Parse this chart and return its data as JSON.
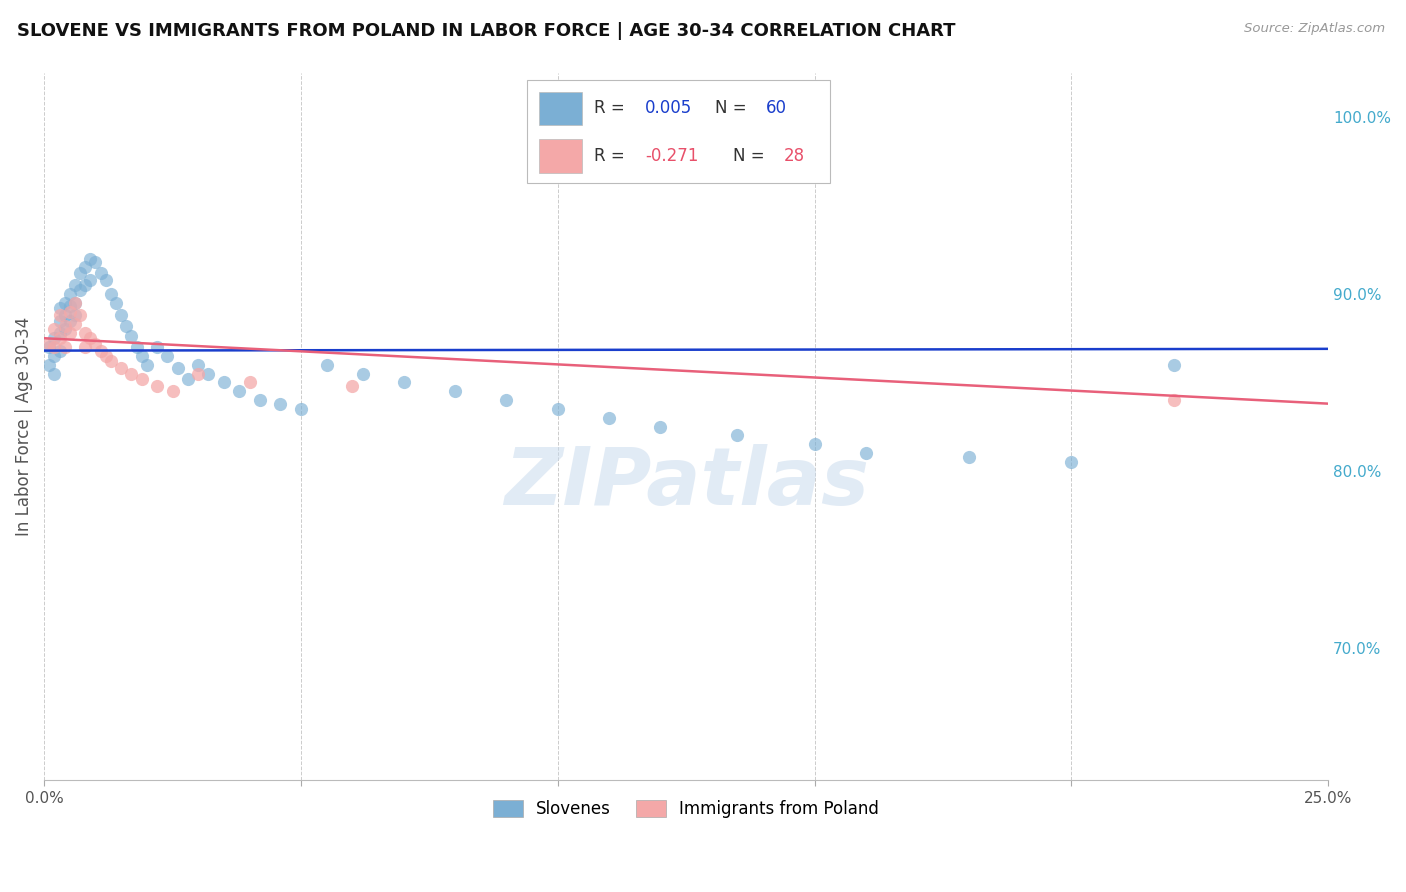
{
  "title": "SLOVENE VS IMMIGRANTS FROM POLAND IN LABOR FORCE | AGE 30-34 CORRELATION CHART",
  "source": "Source: ZipAtlas.com",
  "ylabel": "In Labor Force | Age 30-34",
  "ylabel_right_ticks": [
    "70.0%",
    "80.0%",
    "90.0%",
    "100.0%"
  ],
  "ylabel_right_vals": [
    0.7,
    0.8,
    0.9,
    1.0
  ],
  "xlim": [
    0.0,
    0.25
  ],
  "ylim": [
    0.625,
    1.025
  ],
  "blue_color": "#7BAFD4",
  "pink_color": "#F4A8A8",
  "trend_blue": "#1A3ECC",
  "trend_pink": "#E8607A",
  "watermark": "ZIPatlas",
  "watermark_color": "#C5D8EC",
  "watermark_alpha": 0.5,
  "blue_scatter_x": [
    0.001,
    0.001,
    0.002,
    0.002,
    0.002,
    0.003,
    0.003,
    0.003,
    0.003,
    0.004,
    0.004,
    0.004,
    0.005,
    0.005,
    0.005,
    0.006,
    0.006,
    0.006,
    0.007,
    0.007,
    0.008,
    0.008,
    0.009,
    0.009,
    0.01,
    0.011,
    0.012,
    0.013,
    0.014,
    0.015,
    0.016,
    0.017,
    0.018,
    0.019,
    0.02,
    0.022,
    0.024,
    0.026,
    0.028,
    0.03,
    0.032,
    0.035,
    0.038,
    0.042,
    0.046,
    0.05,
    0.055,
    0.062,
    0.07,
    0.08,
    0.09,
    0.1,
    0.11,
    0.12,
    0.135,
    0.15,
    0.16,
    0.18,
    0.2,
    0.22
  ],
  "blue_scatter_y": [
    0.87,
    0.86,
    0.875,
    0.865,
    0.855,
    0.892,
    0.885,
    0.878,
    0.868,
    0.895,
    0.888,
    0.88,
    0.9,
    0.893,
    0.885,
    0.905,
    0.895,
    0.888,
    0.912,
    0.902,
    0.915,
    0.905,
    0.92,
    0.908,
    0.918,
    0.912,
    0.908,
    0.9,
    0.895,
    0.888,
    0.882,
    0.876,
    0.87,
    0.865,
    0.86,
    0.87,
    0.865,
    0.858,
    0.852,
    0.86,
    0.855,
    0.85,
    0.845,
    0.84,
    0.838,
    0.835,
    0.86,
    0.855,
    0.85,
    0.845,
    0.84,
    0.835,
    0.83,
    0.825,
    0.82,
    0.815,
    0.81,
    0.808,
    0.805,
    0.86
  ],
  "pink_scatter_x": [
    0.001,
    0.002,
    0.002,
    0.003,
    0.003,
    0.004,
    0.004,
    0.005,
    0.005,
    0.006,
    0.006,
    0.007,
    0.008,
    0.008,
    0.009,
    0.01,
    0.011,
    0.012,
    0.013,
    0.015,
    0.017,
    0.019,
    0.022,
    0.025,
    0.03,
    0.04,
    0.06,
    0.22
  ],
  "pink_scatter_y": [
    0.872,
    0.88,
    0.87,
    0.888,
    0.875,
    0.882,
    0.87,
    0.89,
    0.878,
    0.895,
    0.883,
    0.888,
    0.878,
    0.87,
    0.875,
    0.872,
    0.868,
    0.865,
    0.862,
    0.858,
    0.855,
    0.852,
    0.848,
    0.845,
    0.855,
    0.85,
    0.848,
    0.84
  ]
}
